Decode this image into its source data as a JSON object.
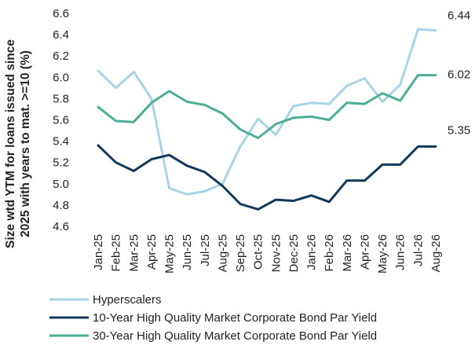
{
  "chart_data": {
    "type": "line",
    "title": "",
    "xlabel": "",
    "ylabel_lines": [
      "Size wtd YTM for loans issued since",
      "2025 with years to mat. >=10 (%)"
    ],
    "ylim": [
      4.6,
      6.6
    ],
    "yticks": [
      "4.6",
      "4.8",
      "5.0",
      "5.2",
      "5.4",
      "5.6",
      "5.8",
      "6.0",
      "6.2",
      "6.4",
      "6.6"
    ],
    "grid": false,
    "legend_position": "bottom",
    "categories": [
      "Jan-25",
      "Feb-25",
      "Mar-25",
      "Apr-25",
      "May-25",
      "Jun-25",
      "Jul-25",
      "Aug-25",
      "Sep-25",
      "Oct-25",
      "Nov-25",
      "Dec-25",
      "Jan-26",
      "Feb-26",
      "Mar-26",
      "Apr-26",
      "May-26",
      "Jun-26",
      "Jul-26",
      "Aug-26"
    ],
    "series": [
      {
        "name": "Hyperscalers",
        "color": "#a9d4e6",
        "values": [
          6.06,
          5.9,
          6.05,
          5.8,
          4.96,
          4.9,
          4.93,
          5.0,
          5.35,
          5.61,
          5.46,
          5.73,
          5.76,
          5.75,
          5.92,
          5.99,
          5.77,
          5.93,
          6.45,
          6.44
        ],
        "end_label": "6.44"
      },
      {
        "name": "10-Year High Quality Market Corporate Bond Par Yield",
        "color": "#14375c",
        "values": [
          5.36,
          5.2,
          5.12,
          5.23,
          5.27,
          5.17,
          5.11,
          4.98,
          4.81,
          4.76,
          4.85,
          4.84,
          4.89,
          4.83,
          5.03,
          5.03,
          5.18,
          5.18,
          5.35,
          5.35
        ],
        "end_label": "5.35"
      },
      {
        "name": "30-Year High Quality Market Corporate Bond Par Yield",
        "color": "#4cae96",
        "values": [
          5.72,
          5.59,
          5.58,
          5.76,
          5.87,
          5.77,
          5.74,
          5.66,
          5.51,
          5.43,
          5.56,
          5.62,
          5.63,
          5.6,
          5.76,
          5.75,
          5.85,
          5.78,
          6.02,
          6.02
        ],
        "end_label": "6.02"
      }
    ]
  }
}
